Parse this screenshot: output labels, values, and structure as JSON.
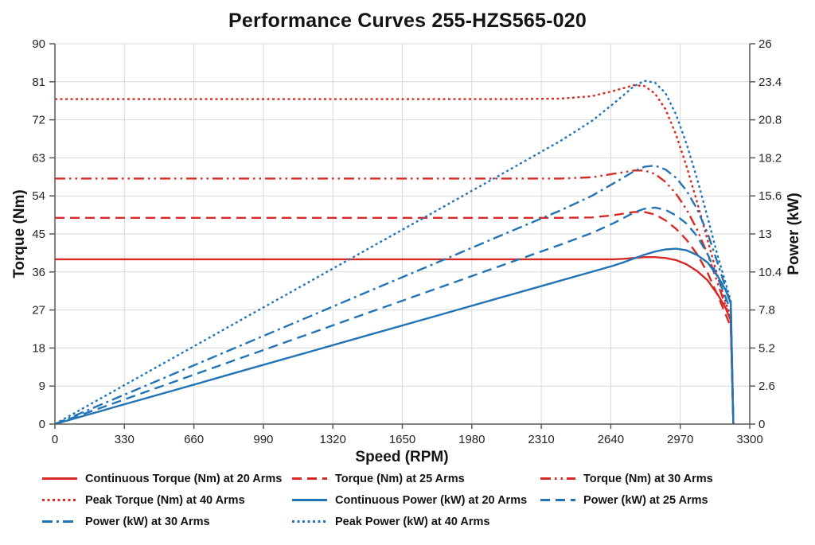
{
  "title": "Performance Curves 255-HZS565-020",
  "colors": {
    "torque_red": "#d62b24",
    "power_blue": "#2274b5",
    "grid": "#d9d9d9",
    "axis": "#595959",
    "tick_text": "#262626",
    "title_text": "#141414"
  },
  "axes": {
    "x": {
      "label": "Speed (RPM)",
      "min": 0,
      "max": 3300,
      "tick_values": [
        0,
        330,
        660,
        990,
        1320,
        1650,
        1980,
        2310,
        2640,
        2970,
        3300
      ],
      "tick_labels": [
        "0",
        "330",
        "660",
        "990",
        "1320",
        "1650",
        "1980",
        "2310",
        "2640",
        "2970",
        "3300"
      ]
    },
    "y_left": {
      "label": "Torque (Nm)",
      "min": 0,
      "max": 90,
      "tick_values": [
        0,
        9,
        18,
        27,
        36,
        45,
        54,
        63,
        72,
        81,
        90
      ],
      "tick_labels": [
        "0",
        "9",
        "18",
        "27",
        "36",
        "45",
        "54",
        "63",
        "72",
        "81",
        "90"
      ]
    },
    "y_right": {
      "label": "Power (kW)",
      "min": 0,
      "max": 26,
      "tick_values": [
        0,
        2.6,
        5.2,
        7.8,
        10.4,
        13,
        15.6,
        18.2,
        20.8,
        23.4,
        26
      ],
      "tick_labels": [
        "0",
        "2.6",
        "5.2",
        "7.8",
        "10.4",
        "13",
        "15.6",
        "18.2",
        "20.8",
        "23.4",
        "26"
      ]
    }
  },
  "chart_data": {
    "type": "line",
    "title": "Performance Curves 255-HZS565-020",
    "xlabel": "Speed (RPM)",
    "ylabel_left": "Torque (Nm)",
    "ylabel_right": "Power (kW)",
    "xlim": [
      0,
      3300
    ],
    "ylim_left": [
      0,
      90
    ],
    "ylim_right": [
      0,
      26
    ],
    "grid": true,
    "legend_position": "bottom",
    "x": [
      0,
      300,
      600,
      900,
      1200,
      1500,
      1800,
      2100,
      2400,
      2550,
      2650,
      2700,
      2750,
      2800,
      2850,
      2900,
      2950,
      3000,
      3050,
      3100,
      3150,
      3185,
      3210,
      3222
    ],
    "series": [
      {
        "name": "Continuous Torque (Nm) at 20 Arms",
        "axis": "left",
        "color": "#d62b24",
        "dash": "solid",
        "values": [
          39,
          39,
          39,
          39,
          39,
          39,
          39,
          39,
          39,
          39,
          39,
          39.1,
          39.3,
          39.5,
          39.5,
          39.3,
          38.8,
          37.8,
          36.2,
          34,
          30.5,
          27.5,
          24.5,
          0
        ]
      },
      {
        "name": "Torque (Nm) at 25 Arms",
        "axis": "left",
        "color": "#d62b24",
        "dash": "dash",
        "values": [
          48.8,
          48.8,
          48.8,
          48.8,
          48.8,
          48.8,
          48.8,
          48.8,
          48.8,
          48.9,
          49.4,
          49.8,
          50.2,
          50.2,
          49.6,
          48.2,
          46.2,
          43.6,
          40.2,
          35.8,
          30.2,
          26,
          23,
          0
        ]
      },
      {
        "name": "Torque (Nm) at 30 Arms",
        "axis": "left",
        "color": "#d62b24",
        "dash": "dashdotdot",
        "values": [
          58.1,
          58.1,
          58.1,
          58.1,
          58.1,
          58.1,
          58.1,
          58.1,
          58.1,
          58.4,
          59.2,
          59.6,
          60,
          60,
          59.2,
          57.3,
          54.5,
          50.8,
          46,
          40.2,
          33,
          28,
          24.5,
          0
        ]
      },
      {
        "name": "Peak Torque (Nm) at 40 Arms",
        "axis": "left",
        "color": "#d62b24",
        "dash": "dot",
        "values": [
          76.9,
          76.9,
          76.9,
          76.9,
          76.9,
          76.9,
          76.9,
          76.9,
          77,
          77.6,
          78.8,
          79.5,
          80.2,
          80,
          78.2,
          74.5,
          68.5,
          61,
          52.5,
          43.5,
          34.5,
          29,
          25,
          0
        ]
      },
      {
        "name": "Continuous Power (kW) at 20 Arms",
        "axis": "right",
        "color": "#2274b5",
        "dash": "solid",
        "values": [
          0,
          1.23,
          2.45,
          3.68,
          4.9,
          6.13,
          7.35,
          8.58,
          9.8,
          10.41,
          10.82,
          11.05,
          11.32,
          11.58,
          11.79,
          11.94,
          11.99,
          11.88,
          11.56,
          11.04,
          10.06,
          9.17,
          8.24,
          0
        ]
      },
      {
        "name": "Power (kW) at 25 Arms",
        "axis": "right",
        "color": "#2274b5",
        "dash": "dash",
        "values": [
          0,
          1.53,
          3.07,
          4.6,
          6.13,
          7.67,
          9.2,
          10.73,
          12.26,
          13.06,
          13.71,
          14.08,
          14.46,
          14.72,
          14.8,
          14.64,
          14.27,
          13.7,
          12.84,
          11.62,
          9.96,
          8.67,
          7.73,
          0
        ]
      },
      {
        "name": "Power (kW) at 30 Arms",
        "axis": "right",
        "color": "#2274b5",
        "dash": "dashdot",
        "values": [
          0,
          1.83,
          3.65,
          5.48,
          7.3,
          9.13,
          10.95,
          12.78,
          14.6,
          15.6,
          16.43,
          16.85,
          17.28,
          17.59,
          17.67,
          17.4,
          16.84,
          15.96,
          14.69,
          13.05,
          10.89,
          9.34,
          8.24,
          0
        ]
      },
      {
        "name": "Peak Power (kW) at 40 Arms",
        "axis": "right",
        "color": "#2274b5",
        "dash": "dot",
        "values": [
          0,
          2.42,
          4.83,
          7.25,
          9.66,
          12.08,
          14.49,
          16.91,
          19.35,
          20.72,
          21.87,
          22.48,
          23.1,
          23.46,
          23.34,
          22.63,
          21.16,
          19.16,
          16.77,
          14.12,
          11.38,
          9.67,
          8.4,
          0
        ]
      }
    ]
  },
  "legend": {
    "item_order": [
      0,
      1,
      2,
      3,
      4,
      5,
      6,
      7
    ]
  }
}
